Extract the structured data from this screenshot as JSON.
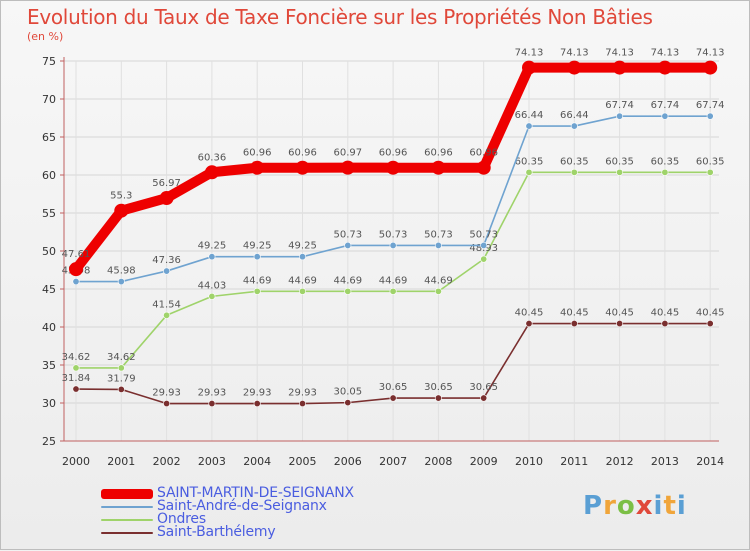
{
  "chart_data": {
    "type": "line",
    "title": "Evolution du Taux de Taxe Foncière sur les Propriétés Non Bâties",
    "subtitle": "(en %)",
    "x": [
      "2000",
      "2001",
      "2002",
      "2003",
      "2004",
      "2005",
      "2006",
      "2007",
      "2008",
      "2009",
      "2010",
      "2011",
      "2012",
      "2013",
      "2014"
    ],
    "ylim": [
      25,
      75
    ],
    "yticks": [
      25,
      30,
      35,
      40,
      45,
      50,
      55,
      60,
      65,
      70,
      75
    ],
    "series": [
      {
        "name": "Saint-Barthélemy",
        "color": "#7a2f2f",
        "values": [
          31.84,
          31.79,
          29.93,
          29.93,
          29.93,
          29.93,
          30.05,
          30.65,
          30.65,
          30.65,
          40.45,
          40.45,
          40.45,
          40.45,
          40.45
        ],
        "labels": [
          "31.84",
          "31.79",
          "29.93",
          "29.93",
          "29.93",
          "29.93",
          "30.05",
          "30.65",
          "30.65",
          "30.65",
          "40.45",
          "40.45",
          "40.45",
          "40.45",
          "40.45"
        ]
      },
      {
        "name": "Ondres",
        "color": "#9fd36a",
        "values": [
          34.62,
          34.62,
          41.54,
          44.03,
          44.69,
          44.69,
          44.69,
          44.69,
          44.69,
          48.93,
          60.35,
          60.35,
          60.35,
          60.35,
          60.35
        ],
        "labels": [
          "34.62",
          "34.62",
          "41.54",
          "44.03",
          "44.69",
          "44.69",
          "44.69",
          "44.69",
          "44.69",
          "48.93",
          "60.35",
          "60.35",
          "60.35",
          "60.35",
          "60.35"
        ]
      },
      {
        "name": "Saint-André-de-Seignanx",
        "color": "#6fa3d0",
        "values": [
          45.98,
          45.98,
          47.36,
          49.25,
          49.25,
          49.25,
          50.73,
          50.73,
          50.73,
          50.73,
          66.44,
          66.44,
          67.74,
          67.74,
          67.74
        ],
        "labels": [
          "45.98",
          "45.98",
          "47.36",
          "49.25",
          "49.25",
          "49.25",
          "50.73",
          "50.73",
          "50.73",
          "50.73",
          "66.44",
          "66.44",
          "67.74",
          "67.74",
          "67.74"
        ]
      },
      {
        "name": "SAINT-MARTIN-DE-SEIGNANX",
        "color": "#ee0000",
        "values": [
          47.61,
          55.3,
          56.97,
          60.36,
          60.96,
          60.96,
          60.97,
          60.96,
          60.96,
          60.96,
          74.13,
          74.13,
          74.13,
          74.13,
          74.13
        ],
        "labels": [
          "47.61",
          "55.3",
          "56.97",
          "60.36",
          "60.96",
          "60.96",
          "60.97",
          "60.96",
          "60.96",
          "60.96",
          "74.13",
          "74.13",
          "74.13",
          "74.13",
          "74.13"
        ]
      }
    ],
    "legend": [
      {
        "name": "SAINT-MARTIN-DE-SEIGNANX",
        "color": "#ee0000"
      },
      {
        "name": "Saint-André-de-Seignanx",
        "color": "#6fa3d0"
      },
      {
        "name": "Ondres",
        "color": "#9fd36a"
      },
      {
        "name": "Saint-Barthélemy",
        "color": "#7a2f2f"
      }
    ]
  },
  "logo": {
    "text": "Proxiti"
  }
}
